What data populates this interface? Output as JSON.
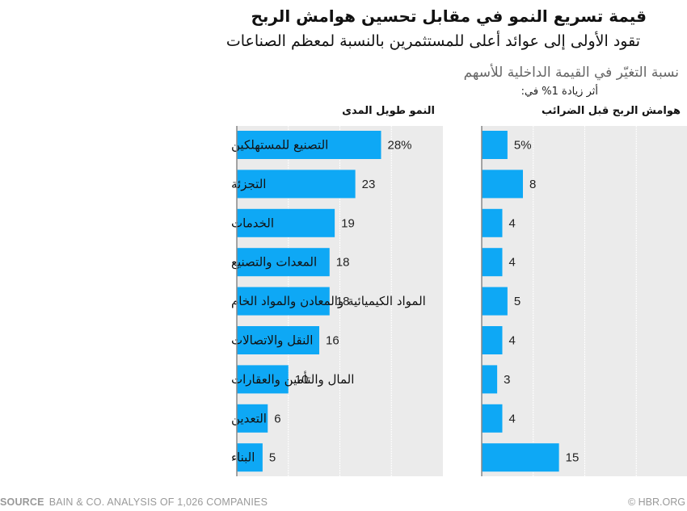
{
  "header": {
    "title": "قيمة تسريع النمو في مقابل تحسين هوامش الربح",
    "subtitle": "تقود الأولى إلى عوائد أعلى للمستثمرين بالنسبة لمعظم الصناعات",
    "description": "نسبة التغيّر في القيمة الداخلية للأسهم",
    "description2": "أثر زيادة 1% في:"
  },
  "footer": {
    "source_label": "SOURCE",
    "source_text": "BAIN & CO. ANALYSIS OF 1,026 COMPANIES",
    "credit": "© HBR.ORG"
  },
  "colors": {
    "bar": "#0ea8f5",
    "panel_bg": "#ebebeb",
    "grid": "#ffffff",
    "axis": "#888888"
  },
  "chart_data": [
    {
      "type": "bar",
      "orientation": "horizontal",
      "title": "النمو طويل المدى",
      "categories": [
        "التصنيع للمستهلكين",
        "التجزئة",
        "الخدمات",
        "المعدات والتصنيع",
        "المواد الكيميائية والمعادن والمواد الخام",
        "النقل والاتصالات",
        "المال والتأمين والعقارات",
        "التعدين",
        "البناء"
      ],
      "values": [
        28,
        23,
        19,
        18,
        18,
        16,
        10,
        6,
        5
      ],
      "value_labels": [
        "28%",
        "23",
        "19",
        "18",
        "18",
        "16",
        "10",
        "6",
        "5"
      ],
      "xlim": [
        0,
        40
      ],
      "grid_step": 10,
      "grid": true,
      "unit": "%"
    },
    {
      "type": "bar",
      "orientation": "horizontal",
      "title": "هوامش الربح قبل الضرائب",
      "categories": [
        "التصنيع للمستهلكين",
        "التجزئة",
        "الخدمات",
        "المعدات والتصنيع",
        "المواد الكيميائية والمعادن والمواد الخام",
        "النقل والاتصالات",
        "المال والتأمين والعقارات",
        "التعدين",
        "البناء"
      ],
      "values": [
        5,
        8,
        4,
        4,
        5,
        4,
        3,
        4,
        15
      ],
      "value_labels": [
        "5%",
        "8",
        "4",
        "4",
        "5",
        "4",
        "3",
        "4",
        "15"
      ],
      "xlim": [
        0,
        40
      ],
      "grid_step": 10,
      "grid": true,
      "unit": "%"
    }
  ]
}
